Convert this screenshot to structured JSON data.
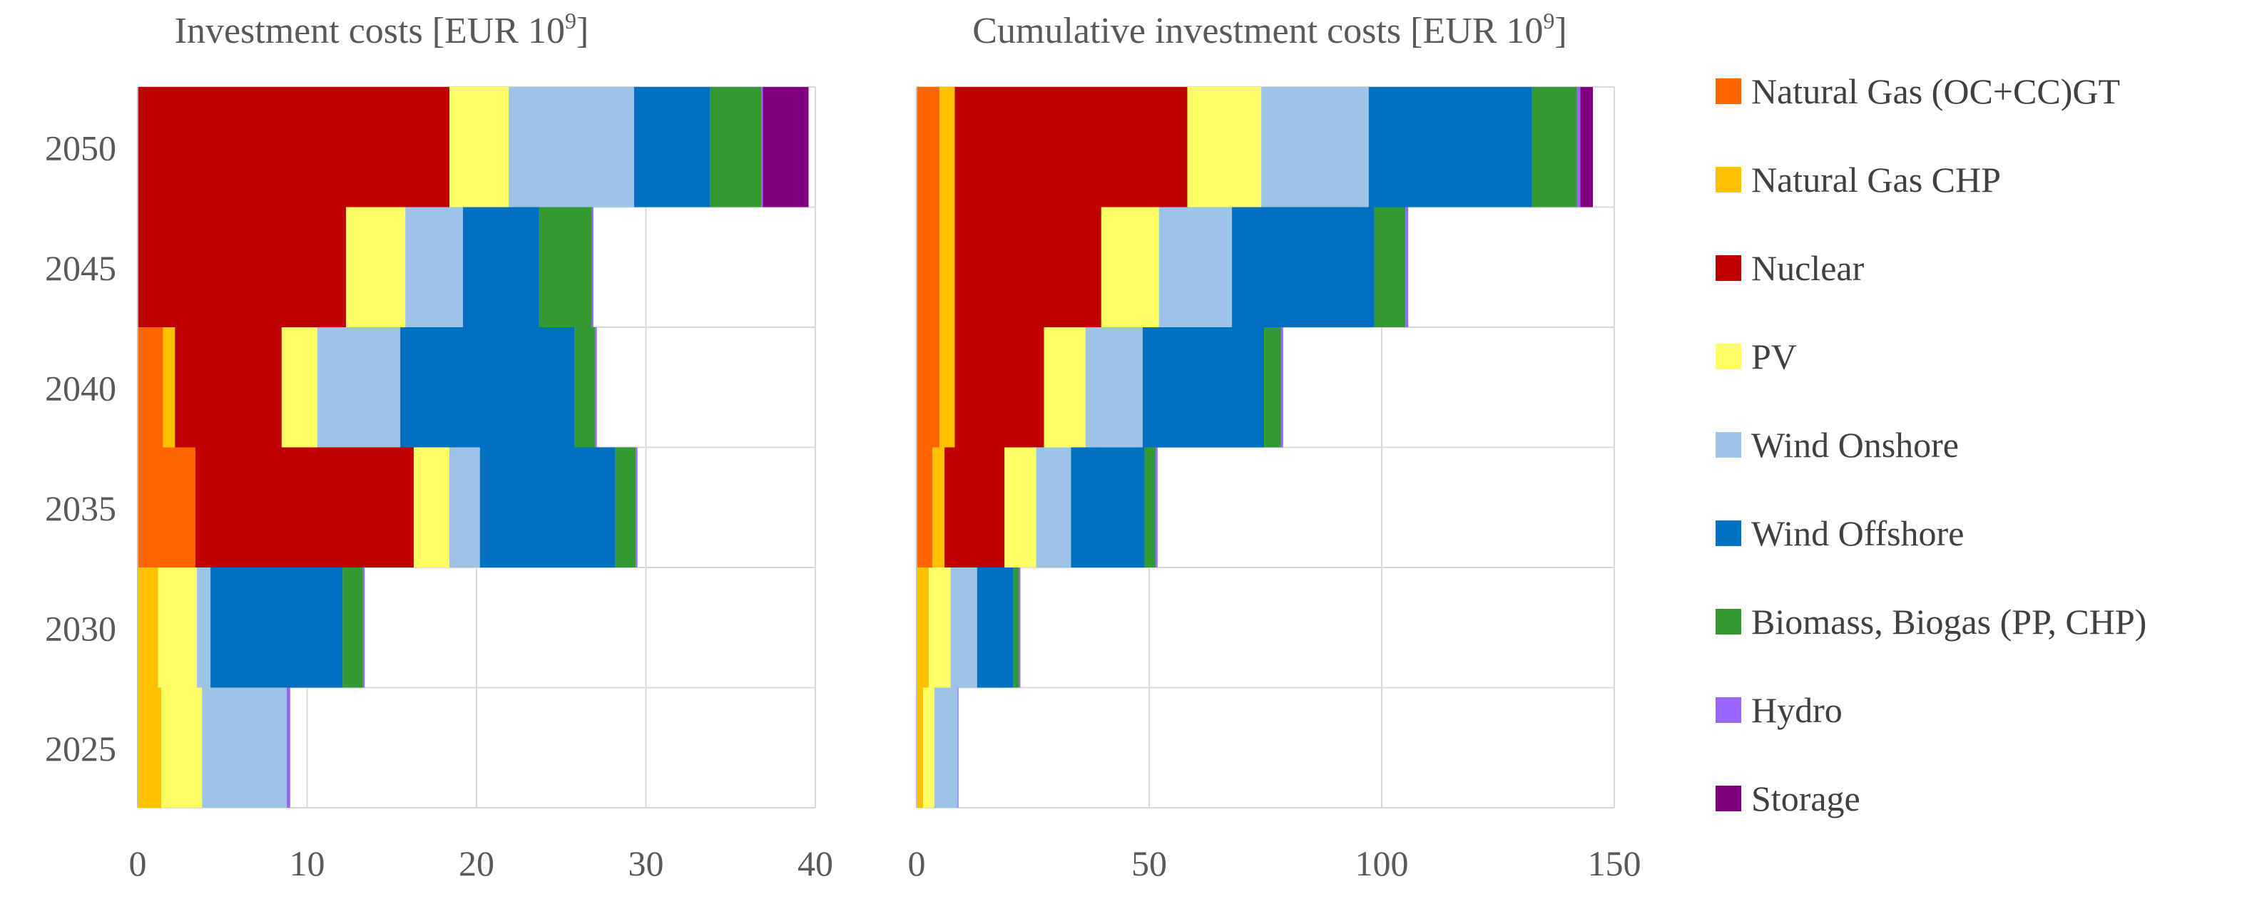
{
  "chart_data": [
    {
      "type": "bar",
      "orientation": "horizontal",
      "stacked": true,
      "title": "Investment costs [EUR 10",
      "title_superscript": "9",
      "title_suffix": "]",
      "categories": [
        "2050",
        "2045",
        "2040",
        "2035",
        "2030",
        "2025"
      ],
      "xlim": [
        0,
        40
      ],
      "xticks": [
        "0",
        "10",
        "20",
        "30",
        "40"
      ],
      "grid": true,
      "series": [
        {
          "name": "Natural Gas (OC+CC)GT",
          "values": [
            0,
            0,
            1.5,
            3.4,
            0,
            0
          ]
        },
        {
          "name": "Natural Gas CHP",
          "values": [
            0,
            0,
            0.7,
            0,
            1.2,
            1.4
          ]
        },
        {
          "name": "Nuclear",
          "values": [
            18.4,
            12.3,
            6.3,
            12.9,
            0,
            0
          ]
        },
        {
          "name": "PV",
          "values": [
            3.5,
            3.5,
            2.1,
            2.1,
            2.3,
            2.4
          ]
        },
        {
          "name": "Wind Onshore",
          "values": [
            7.4,
            3.4,
            4.9,
            1.8,
            0.8,
            5.0
          ]
        },
        {
          "name": "Wind Offshore",
          "values": [
            4.5,
            4.5,
            10.3,
            8.0,
            7.8,
            0
          ]
        },
        {
          "name": "Biomass, Biogas (PP, CHP)",
          "values": [
            3.0,
            3.1,
            1.2,
            1.2,
            1.2,
            0
          ]
        },
        {
          "name": "Hydro",
          "values": [
            0.1,
            0.1,
            0.1,
            0.1,
            0.1,
            0.2
          ]
        },
        {
          "name": "Storage",
          "values": [
            2.7,
            0,
            0,
            0,
            0,
            0
          ]
        }
      ]
    },
    {
      "type": "bar",
      "orientation": "horizontal",
      "stacked": true,
      "title": "Cumulative investment costs [EUR 10",
      "title_superscript": "9",
      "title_suffix": "]",
      "categories": [
        "2050",
        "2045",
        "2040",
        "2035",
        "2030",
        "2025"
      ],
      "xlim": [
        0,
        150
      ],
      "xticks": [
        "0",
        "50",
        "100",
        "150"
      ],
      "grid": true,
      "series": [
        {
          "name": "Natural Gas (OC+CC)GT",
          "values": [
            4.9,
            4.9,
            4.9,
            3.4,
            0,
            0
          ]
        },
        {
          "name": "Natural Gas CHP",
          "values": [
            3.3,
            3.3,
            3.3,
            2.6,
            2.6,
            1.4
          ]
        },
        {
          "name": "Nuclear",
          "values": [
            50,
            31.5,
            19.2,
            12.9,
            0,
            0
          ]
        },
        {
          "name": "PV",
          "values": [
            15.9,
            12.4,
            8.9,
            6.8,
            4.7,
            2.4
          ]
        },
        {
          "name": "Wind Onshore",
          "values": [
            23.1,
            15.7,
            12.3,
            7.5,
            5.7,
            5.0
          ]
        },
        {
          "name": "Wind Offshore",
          "values": [
            35.1,
            30.6,
            26.1,
            15.8,
            7.8,
            0
          ]
        },
        {
          "name": "Biomass, Biogas (PP, CHP)",
          "values": [
            9.7,
            6.7,
            3.6,
            2.4,
            1.2,
            0
          ]
        },
        {
          "name": "Hydro",
          "values": [
            0.7,
            0.6,
            0.5,
            0.4,
            0.3,
            0.2
          ]
        },
        {
          "name": "Storage",
          "values": [
            2.7,
            0,
            0,
            0,
            0,
            0
          ]
        }
      ]
    }
  ],
  "legend": {
    "placement": "right",
    "items": [
      {
        "name": "Natural Gas (OC+CC)GT",
        "color": "#ff6600"
      },
      {
        "name": "Natural Gas CHP",
        "color": "#ffc000"
      },
      {
        "name": "Nuclear",
        "color": "#c00000"
      },
      {
        "name": "PV",
        "color": "#ffff66"
      },
      {
        "name": "Wind Onshore",
        "color": "#9dc3e6"
      },
      {
        "name": "Wind Offshore",
        "color": "#0070c0"
      },
      {
        "name": "Biomass, Biogas (PP, CHP)",
        "color": "#339933"
      },
      {
        "name": "Hydro",
        "color": "#9966ff"
      },
      {
        "name": "Storage",
        "color": "#800080"
      }
    ]
  }
}
